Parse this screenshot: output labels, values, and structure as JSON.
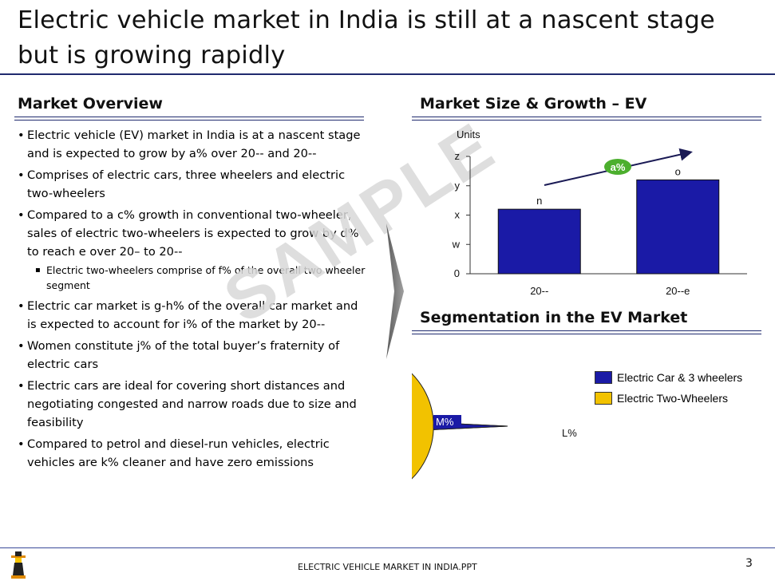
{
  "title": "Electric vehicle market in India is still at a nascent stage but is growing rapidly",
  "overview": {
    "heading": "Market Overview",
    "bullets": [
      "Electric vehicle (EV) market in India is at a nascent stage and is expected to grow by a% over 20-- and 20--",
      "Comprises of electric cars, three wheelers and electric two-wheelers",
      "Compared to a c% growth in conventional two-wheeler, sales of electric two-wheelers is expected to grow by d% to reach e over 20– to 20--",
      "Electric car market is g-h% of the overall car market and is expected to account for i% of the market by 20--",
      "Women constitute j% of the total buyer’s fraternity of electric cars",
      "Electric cars are ideal for covering short distances and negotiating congested and narrow roads due to size and feasibility",
      "Compared to petrol and diesel-run vehicles, electric vehicles are k% cleaner and have zero emissions"
    ],
    "sub_bullet": "Electric two-wheelers comprise of f%  of the overall two wheeler segment"
  },
  "watermark": "SAMPLE",
  "market_size": {
    "heading": "Market Size & Growth – EV",
    "growth_label": "a%"
  },
  "segmentation": {
    "heading": "Segmentation in the EV Market"
  },
  "chart_data": [
    {
      "type": "bar",
      "ylabel": "Units",
      "y_tick_labels": [
        "0",
        "w",
        "x",
        "y",
        "z"
      ],
      "categories": [
        "20--",
        "20--e"
      ],
      "values": [
        2.2,
        3.2
      ],
      "data_labels": [
        "n",
        "o"
      ],
      "ylim": [
        0,
        4
      ],
      "color": "#1a1aa6",
      "annotation": "a%",
      "annotation_color": "#4caf2e"
    },
    {
      "type": "pie",
      "labels": [
        "Electric Car & 3 wheelers",
        "Electric Two-Wheelers"
      ],
      "values": [
        1.5,
        98.5
      ],
      "slice_labels": [
        "M%",
        "L%"
      ],
      "colors": [
        "#1a1aa6",
        "#f2c200"
      ],
      "legend": "right"
    }
  ],
  "footer": {
    "text": "ELECTRIC VEHICLE MARKET IN INDIA.PPT",
    "page": "3"
  }
}
